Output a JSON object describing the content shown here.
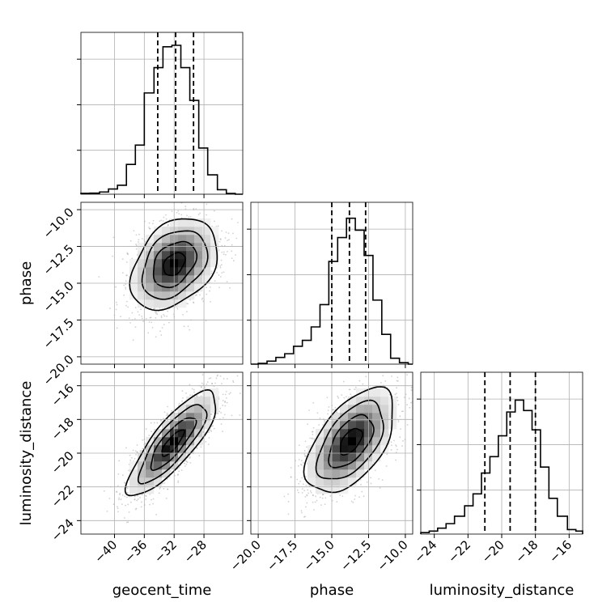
{
  "chart_data": {
    "type": "corner",
    "parameters": [
      "geocent_time",
      "phase",
      "luminosity_distance"
    ],
    "axis_labels": {
      "x": [
        "geocent_time",
        "phase",
        "luminosity_distance"
      ],
      "y": [
        "",
        "phase",
        "luminosity_distance"
      ]
    },
    "ranges": {
      "geocent_time": [
        -44.5,
        -22.8
      ],
      "phase": [
        -20.5,
        -9.5
      ],
      "luminosity_distance": [
        -24.8,
        -15.2
      ]
    },
    "ticks": {
      "geocent_time": [
        -40,
        -36,
        -32,
        -28
      ],
      "phase": [
        -20.0,
        -17.5,
        -15.0,
        -12.5,
        -10.0
      ],
      "luminosity_distance": [
        -24,
        -22,
        -20,
        -18,
        -16
      ]
    },
    "tick_labels": {
      "geocent_time": [
        "−40",
        "−36",
        "−32",
        "−28"
      ],
      "phase": [
        "−20.0",
        "−17.5",
        "−15.0",
        "−12.5",
        "−10.0"
      ],
      "luminosity_distance": [
        "−24",
        "−22",
        "−20",
        "−18",
        "−16"
      ]
    },
    "quantiles": {
      "geocent_time": [
        -34.2,
        -31.8,
        -29.4
      ],
      "phase": [
        -15.0,
        -13.8,
        -12.7
      ],
      "luminosity_distance": [
        -21.0,
        -19.5,
        -18.0
      ]
    },
    "histograms": {
      "geocent_time": {
        "edges": [
          -44.5,
          -43.3,
          -42.0,
          -40.8,
          -39.6,
          -38.4,
          -37.2,
          -36.0,
          -34.7,
          -33.5,
          -32.3,
          -31.1,
          -29.9,
          -28.7,
          -27.5,
          -26.2,
          -25.0,
          -23.8,
          -22.8
        ],
        "counts": [
          0.006,
          0.007,
          0.015,
          0.035,
          0.06,
          0.2,
          0.33,
          0.68,
          0.85,
          0.99,
          1.0,
          0.85,
          0.63,
          0.31,
          0.13,
          0.03,
          0.005,
          0.0
        ]
      },
      "phase": {
        "edges": [
          -20.5,
          -20.0,
          -19.4,
          -18.8,
          -18.2,
          -17.6,
          -17.0,
          -16.4,
          -15.8,
          -15.2,
          -14.6,
          -14.0,
          -13.4,
          -12.8,
          -12.2,
          -11.6,
          -11.0,
          -10.4,
          -9.8,
          -9.5
        ],
        "counts": [
          0.0,
          0.005,
          0.02,
          0.045,
          0.07,
          0.12,
          0.16,
          0.25,
          0.4,
          0.69,
          0.85,
          0.98,
          0.9,
          0.73,
          0.43,
          0.2,
          0.04,
          0.01,
          0.0
        ]
      },
      "luminosity_distance": {
        "edges": [
          -24.8,
          -24.3,
          -23.8,
          -23.3,
          -22.8,
          -22.2,
          -21.7,
          -21.2,
          -20.7,
          -20.2,
          -19.7,
          -19.2,
          -18.7,
          -18.2,
          -17.7,
          -17.2,
          -16.7,
          -16.1,
          -15.6,
          -15.2
        ],
        "counts": [
          0.01,
          0.02,
          0.04,
          0.07,
          0.12,
          0.19,
          0.27,
          0.41,
          0.52,
          0.66,
          0.82,
          0.9,
          0.83,
          0.7,
          0.45,
          0.24,
          0.12,
          0.03,
          0.02
        ]
      }
    },
    "joint": [
      {
        "x": "geocent_time",
        "y": "phase",
        "center": [
          -32.0,
          -13.7
        ],
        "sigma": [
          2.9,
          1.55
        ],
        "rho": 0.35,
        "contour_levels": [
          0.5,
          1.0,
          1.5,
          2.0
        ]
      },
      {
        "x": "geocent_time",
        "y": "luminosity_distance",
        "center": [
          -32.2,
          -19.4
        ],
        "sigma": [
          3.0,
          1.55
        ],
        "rho": 0.82,
        "contour_levels": [
          0.5,
          1.0,
          1.5,
          2.0
        ]
      },
      {
        "x": "phase",
        "y": "luminosity_distance",
        "center": [
          -13.7,
          -19.3
        ],
        "sigma": [
          1.5,
          1.55
        ],
        "rho": 0.55,
        "contour_levels": [
          0.5,
          1.0,
          1.5,
          2.0
        ]
      }
    ],
    "grid": true,
    "line_color": "#000000",
    "point_color": "#9a9a9a",
    "grid_color": "#b0b0b0"
  }
}
